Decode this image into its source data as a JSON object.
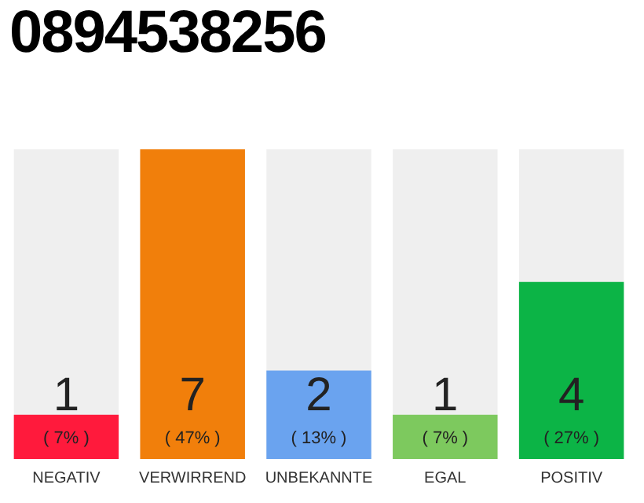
{
  "chart_data": {
    "type": "bar",
    "title": "0894538256",
    "categories": [
      "NEGATIV",
      "VERWIRREND",
      "UNBEKANNTE",
      "EGAL",
      "POSITIV"
    ],
    "values": [
      1,
      7,
      2,
      1,
      4
    ],
    "colors": [
      "#ff1a3c",
      "#f17f0b",
      "#6aa3ef",
      "#7dc95e",
      "#0cb446"
    ],
    "value_labels": [
      "1\n( 7% )",
      "7\n( 47% )",
      "2\n( 13% )",
      "1\n( 7% )",
      "4\n( 27% )"
    ],
    "tick_labels": "x",
    "grid": false,
    "legend": false
  }
}
